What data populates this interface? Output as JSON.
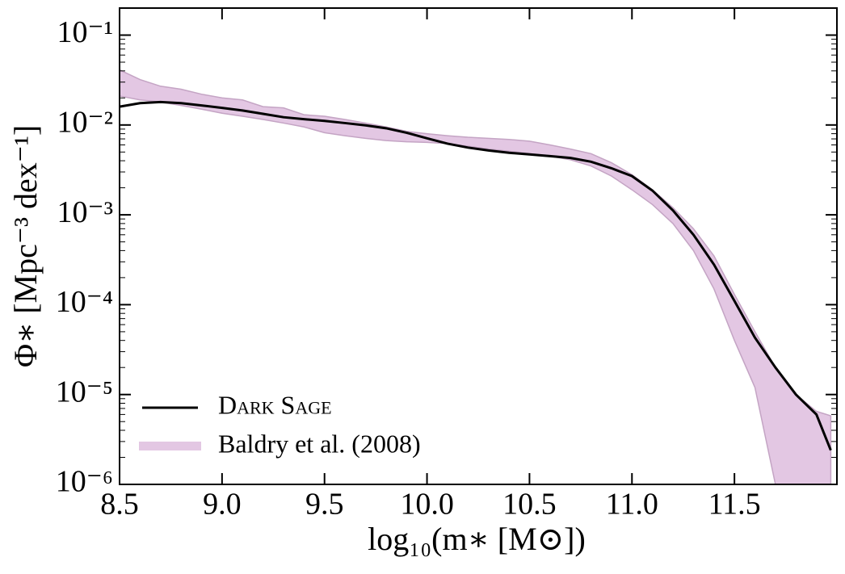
{
  "chart_data": {
    "type": "line",
    "x_label": "log₁₀(m∗ [M⊙])",
    "y_label": "Φ∗ [Mpc⁻³ dex⁻¹]",
    "xlim": [
      8.5,
      12.0
    ],
    "ylim": [
      1e-06,
      0.2
    ],
    "log_y": true,
    "legend": "lower left",
    "xticks": [
      8.5,
      {
        "value": 9,
        "label": "9.0"
      },
      9.5,
      {
        "value": 10,
        "label": "10.0"
      },
      10.5,
      {
        "value": 11,
        "label": "11.0"
      },
      11.5
    ],
    "yticks": [
      {
        "value": 0.1,
        "label": "10⁻¹"
      },
      {
        "value": 0.01,
        "label": "10⁻²"
      },
      {
        "value": 0.001,
        "label": "10⁻³"
      },
      {
        "value": 0.0001,
        "label": "10⁻⁴"
      },
      {
        "value": 1e-05,
        "label": "10⁻⁵"
      },
      {
        "value": 1e-06,
        "label": "10⁻⁶"
      }
    ],
    "x": [
      8.5,
      8.6,
      8.7,
      8.8,
      8.9,
      9.0,
      9.1,
      9.2,
      9.3,
      9.4,
      9.5,
      9.6,
      9.7,
      9.8,
      9.9,
      10.0,
      10.1,
      10.2,
      10.3,
      10.4,
      10.5,
      10.6,
      10.7,
      10.8,
      10.9,
      11.0,
      11.1,
      11.2,
      11.3,
      11.4,
      11.5,
      11.6,
      11.7,
      11.8,
      11.9,
      11.97
    ],
    "series": [
      {
        "name": "Dark Sage",
        "color": "#000000",
        "values": [
          0.016,
          0.0175,
          0.018,
          0.0175,
          0.0165,
          0.0155,
          0.0145,
          0.0133,
          0.0122,
          0.0116,
          0.0111,
          0.0105,
          0.0099,
          0.0092,
          0.0082,
          0.0071,
          0.0062,
          0.0056,
          0.0052,
          0.0049,
          0.0047,
          0.0045,
          0.0043,
          0.0039,
          0.0033,
          0.0027,
          0.00186,
          0.00112,
          0.0006,
          0.00028,
          0.00011,
          4.3e-05,
          2e-05,
          1e-05,
          6e-06,
          2.4e-06
        ]
      }
    ],
    "band": {
      "name": "Baldry et al. (2008)",
      "color": "#e3c7e3",
      "edge_color": "#c4a4c4",
      "upper": [
        0.041,
        0.032,
        0.027,
        0.025,
        0.022,
        0.02,
        0.019,
        0.016,
        0.0155,
        0.013,
        0.0125,
        0.0115,
        0.0105,
        0.0095,
        0.0085,
        0.008,
        0.0076,
        0.0073,
        0.0071,
        0.0069,
        0.0066,
        0.006,
        0.0054,
        0.0048,
        0.0038,
        0.0028,
        0.0019,
        0.0012,
        0.0007,
        0.00035,
        0.00013,
        5e-05,
        2e-05,
        1e-05,
        6.5e-06,
        5.8e-06
      ],
      "lower": [
        0.021,
        0.019,
        0.018,
        0.0165,
        0.015,
        0.0135,
        0.0125,
        0.0115,
        0.0105,
        0.0095,
        0.0082,
        0.0076,
        0.0071,
        0.0067,
        0.0065,
        0.0064,
        0.0062,
        0.0058,
        0.0054,
        0.0051,
        0.0048,
        0.0045,
        0.0041,
        0.0035,
        0.0027,
        0.0019,
        0.0013,
        0.0008,
        0.0004,
        0.00015,
        4e-05,
        1.2e-05,
        1e-06,
        1e-06,
        1e-06,
        1e-06
      ]
    }
  }
}
